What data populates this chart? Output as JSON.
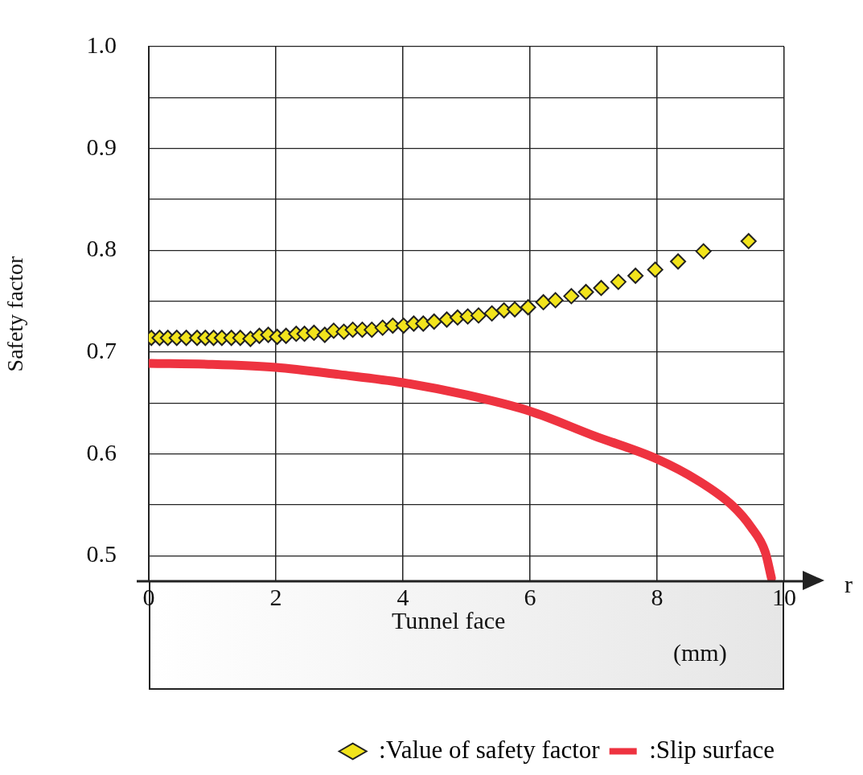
{
  "chart_data": {
    "type": "scatter",
    "ylabel": "Safety factor",
    "xlabel": "r",
    "xlim": [
      0,
      10
    ],
    "xticks": [
      0,
      2,
      4,
      6,
      8,
      10
    ],
    "ylim": [
      0.475,
      1.0
    ],
    "yticks": [
      0.5,
      {
        "value": 0.55,
        "label": null
      },
      0.6,
      {
        "value": 0.65,
        "label": null
      },
      0.7,
      {
        "value": 0.75,
        "label": null
      },
      0.8,
      {
        "value": 0.85,
        "label": null
      },
      0.9,
      {
        "value": 0.95,
        "label": null
      },
      {
        "value": 1,
        "label": "1.0"
      }
    ],
    "grid": true,
    "legend": "bottom right",
    "annotations": [
      "Tunnel face",
      "(mm)"
    ],
    "series": [
      {
        "name": ":Value of safety factor",
        "type": "scatter",
        "marker": "diamond",
        "color": "#f2e41c",
        "x": [
          0.04,
          0.17,
          0.3,
          0.44,
          0.59,
          0.76,
          0.89,
          1.02,
          1.15,
          1.3,
          1.44,
          1.6,
          1.74,
          1.88,
          2.02,
          2.16,
          2.32,
          2.45,
          2.6,
          2.77,
          2.91,
          3.07,
          3.21,
          3.36,
          3.51,
          3.68,
          3.84,
          4.01,
          4.17,
          4.32,
          4.49,
          4.69,
          4.86,
          5.02,
          5.19,
          5.4,
          5.59,
          5.76,
          5.97,
          6.21,
          6.4,
          6.65,
          6.88,
          7.12,
          7.39,
          7.66,
          7.97,
          8.33,
          8.73,
          9.44
        ],
        "values": [
          0.714,
          0.714,
          0.714,
          0.714,
          0.714,
          0.714,
          0.714,
          0.714,
          0.714,
          0.714,
          0.714,
          0.713,
          0.716,
          0.717,
          0.715,
          0.716,
          0.718,
          0.718,
          0.719,
          0.717,
          0.721,
          0.72,
          0.722,
          0.722,
          0.722,
          0.724,
          0.726,
          0.726,
          0.728,
          0.728,
          0.73,
          0.732,
          0.734,
          0.735,
          0.736,
          0.738,
          0.741,
          0.742,
          0.744,
          0.749,
          0.751,
          0.755,
          0.759,
          0.763,
          0.769,
          0.775,
          0.781,
          0.789,
          0.799,
          0.809
        ]
      },
      {
        "name": ":Slip surface",
        "type": "line",
        "marker": "none",
        "line_style": "solid",
        "color": "#ee3340",
        "x": [
          0,
          1,
          2,
          3,
          4,
          5,
          6,
          7,
          8,
          8.64,
          9.19,
          9.48,
          9.7,
          9.8
        ],
        "values": [
          0.689,
          0.688,
          0.685,
          0.678,
          0.67,
          0.658,
          0.642,
          0.618,
          0.595,
          0.574,
          0.549,
          0.528,
          0.504,
          0.478
        ]
      }
    ]
  }
}
